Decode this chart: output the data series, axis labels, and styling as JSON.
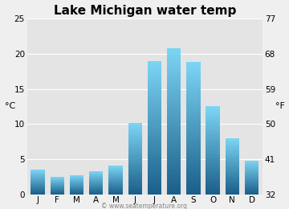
{
  "title": "Lake Michigan water temp",
  "months": [
    "J",
    "F",
    "M",
    "A",
    "M",
    "J",
    "J",
    "A",
    "S",
    "O",
    "N",
    "D"
  ],
  "values_c": [
    3.5,
    2.5,
    2.7,
    3.3,
    4.1,
    10.1,
    19.0,
    20.8,
    18.8,
    12.5,
    8.0,
    4.8
  ],
  "ylim_c": [
    0,
    25
  ],
  "yticks_c": [
    0,
    5,
    10,
    15,
    20,
    25
  ],
  "ylim_f": [
    32,
    77
  ],
  "yticks_f": [
    32,
    41,
    50,
    59,
    68,
    77
  ],
  "ylabel_left": "°C",
  "ylabel_right": "°F",
  "bar_color_top": "#7dd6f5",
  "bar_color_bottom": "#1a5f8a",
  "background_color": "#efefef",
  "plot_bg_color": "#e4e4e4",
  "title_fontsize": 11,
  "axis_fontsize": 7.5,
  "label_fontsize": 8,
  "watermark": "© www.seatemperature.org"
}
